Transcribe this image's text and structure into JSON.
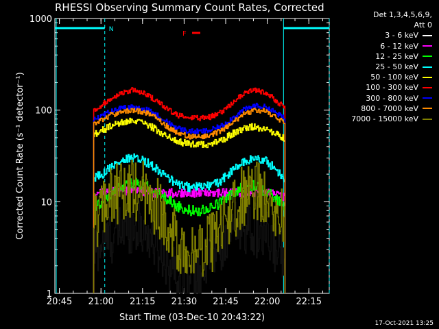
{
  "window": {
    "title": "RHESSI Observing Summary Count Rates, Corrected",
    "footer_timestamp": "17-Oct-2021 13:25"
  },
  "legend": {
    "header": "Det 1,3,4,5,6,9,",
    "header2": "Att 0",
    "entries": [
      {
        "label": "3 - 6 keV",
        "color": "#000000"
      },
      {
        "label": "6 - 12 keV",
        "color": "#ff00ff"
      },
      {
        "label": "12 - 25 keV",
        "color": "#00ff00"
      },
      {
        "label": "25 - 50 keV",
        "color": "#00ffff"
      },
      {
        "label": "50 - 100 keV",
        "color": "#ffff00"
      },
      {
        "label": "100 - 300 keV",
        "color": "#ff0000"
      },
      {
        "label": "300 - 800 keV",
        "color": "#0000ff"
      },
      {
        "label": "800 - 7000 keV",
        "color": "#ff8c00"
      },
      {
        "label": "7000 - 15000 keV",
        "color": "#808000"
      }
    ]
  },
  "chart_data": {
    "type": "line",
    "title": "RHESSI Observing Summary Count Rates, Corrected",
    "xlabel": "Start Time (03-Dec-10 20:43:22)",
    "ylabel": "Corrected Count Rate (s⁻¹ detector⁻¹)",
    "ylog": true,
    "ylim": [
      1,
      1000
    ],
    "xlim_minutes": [
      0,
      99
    ],
    "xtick_labels": [
      "20:45",
      "21:00",
      "21:15",
      "21:30",
      "21:45",
      "22:00",
      "22:15"
    ],
    "ytick_labels": [
      "1",
      "10",
      "100",
      "1000"
    ],
    "annotations": {
      "night_label": "N",
      "flare_label": "F",
      "night_intervals": [
        [
          0,
          18
        ],
        [
          82.5,
          99
        ]
      ],
      "night_markers": [
        18,
        82.5,
        99
      ]
    },
    "time_range": [
      14,
      83
    ],
    "series": [
      {
        "name": "3 - 6 keV",
        "color": "#000000",
        "x": [
          14,
          17,
          20,
          24,
          28,
          32,
          36,
          40,
          44,
          48,
          52,
          56,
          60,
          64,
          68,
          72,
          76,
          80,
          83
        ],
        "values": [
          3,
          3.5,
          4,
          5,
          5.5,
          5,
          3.5,
          2.5,
          1.5,
          1.3,
          1.6,
          2.5,
          3.5,
          5,
          5.5,
          5,
          4,
          3,
          3
        ]
      },
      {
        "name": "6 - 12 keV",
        "color": "#ff00ff",
        "x": [
          14,
          17,
          20,
          24,
          28,
          32,
          36,
          40,
          44,
          48,
          52,
          56,
          60,
          64,
          68,
          72,
          76,
          80,
          83
        ],
        "values": [
          12,
          12.5,
          13,
          13,
          13,
          13,
          12.5,
          12.5,
          12.5,
          12.5,
          12.5,
          12.5,
          12.5,
          12.5,
          12.5,
          12.5,
          12.5,
          12,
          11
        ]
      },
      {
        "name": "12 - 25 keV",
        "color": "#00ff00",
        "x": [
          14,
          17,
          20,
          24,
          28,
          32,
          36,
          40,
          44,
          48,
          52,
          56,
          60,
          64,
          68,
          72,
          76,
          80,
          83
        ],
        "values": [
          8,
          10,
          12,
          14.5,
          16,
          15.5,
          13,
          11,
          9,
          8,
          8,
          8.5,
          10,
          12.5,
          14.5,
          15,
          13,
          10.5,
          9
        ]
      },
      {
        "name": "25 - 50 keV",
        "color": "#00ffff",
        "x": [
          14,
          17,
          20,
          24,
          28,
          32,
          36,
          40,
          44,
          48,
          52,
          56,
          60,
          64,
          68,
          72,
          76,
          80,
          83
        ],
        "values": [
          18,
          20,
          24,
          28,
          30,
          28,
          24,
          19,
          15.5,
          14.5,
          14.5,
          15,
          17,
          22,
          27,
          30,
          28,
          22,
          18
        ]
      },
      {
        "name": "50 - 100 keV",
        "color": "#ffff00",
        "x": [
          14,
          17,
          20,
          24,
          28,
          32,
          36,
          40,
          44,
          48,
          52,
          56,
          60,
          64,
          68,
          72,
          76,
          80,
          83
        ],
        "values": [
          55,
          60,
          66,
          73,
          75,
          72,
          63,
          53,
          46,
          43,
          42,
          43,
          47,
          55,
          63,
          66,
          62,
          54,
          48
        ]
      },
      {
        "name": "100 - 300 keV",
        "color": "#ff0000",
        "x": [
          14,
          17,
          20,
          24,
          28,
          32,
          36,
          40,
          44,
          48,
          52,
          56,
          60,
          64,
          68,
          72,
          76,
          80,
          83
        ],
        "values": [
          100,
          115,
          135,
          155,
          165,
          155,
          130,
          105,
          88,
          82,
          82,
          84,
          95,
          120,
          150,
          165,
          155,
          125,
          105
        ]
      },
      {
        "name": "300 - 800 keV",
        "color": "#0000ff",
        "x": [
          14,
          17,
          20,
          24,
          28,
          32,
          36,
          40,
          44,
          48,
          52,
          56,
          60,
          64,
          68,
          72,
          76,
          80,
          83
        ],
        "values": [
          80,
          87,
          96,
          106,
          108,
          104,
          92,
          76,
          64,
          59,
          58,
          60,
          67,
          82,
          100,
          112,
          108,
          92,
          80
        ]
      },
      {
        "name": "800 - 7000 keV",
        "color": "#ff8c00",
        "x": [
          14,
          17,
          20,
          24,
          28,
          32,
          36,
          40,
          44,
          48,
          52,
          56,
          60,
          64,
          68,
          72,
          76,
          80,
          83
        ],
        "values": [
          70,
          78,
          88,
          97,
          100,
          96,
          84,
          68,
          57,
          52,
          51,
          53,
          60,
          73,
          90,
          100,
          97,
          82,
          71
        ]
      },
      {
        "name": "7000 - 15000 keV",
        "color": "#808000",
        "x": [
          14,
          17,
          20,
          24,
          28,
          32,
          36,
          40,
          44,
          48,
          52,
          56,
          60,
          64,
          68,
          72,
          76,
          80,
          83
        ],
        "values": [
          6,
          8.5,
          11,
          13.5,
          14,
          13,
          9.5,
          6,
          3.8,
          3,
          3,
          3.4,
          5,
          8,
          11.5,
          13.5,
          12.5,
          9,
          6.5
        ]
      }
    ]
  }
}
